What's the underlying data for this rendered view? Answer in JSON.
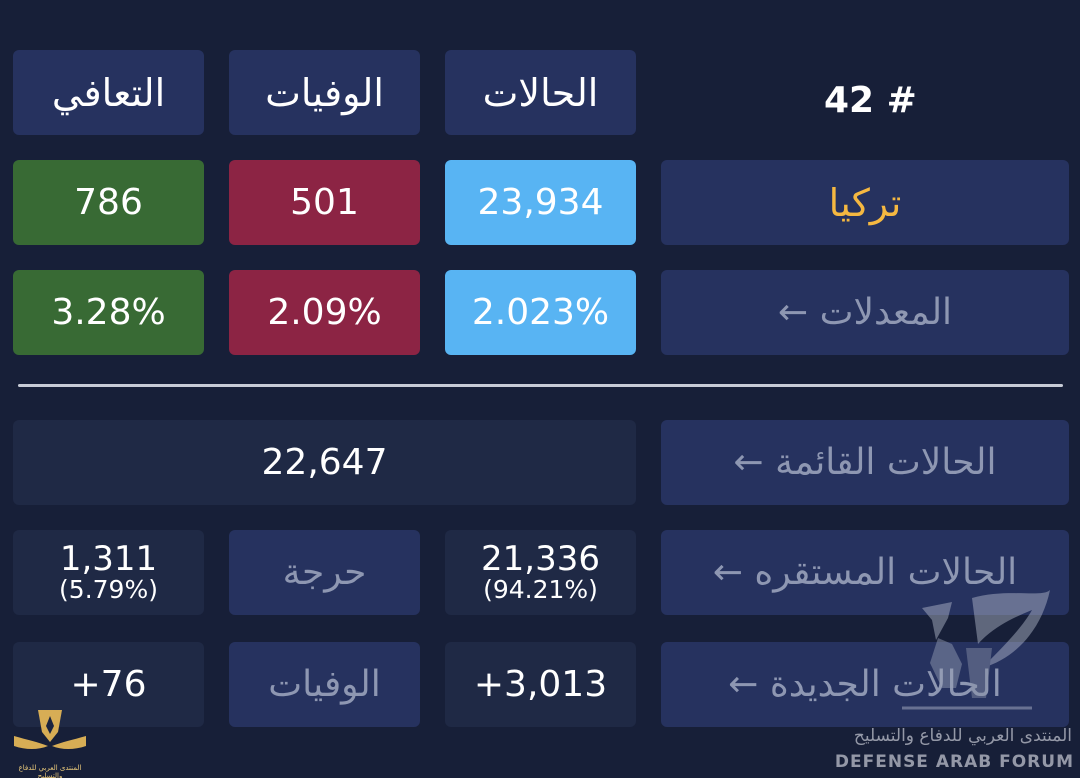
{
  "rank": "42 #",
  "headers": {
    "cases": "الحالات",
    "deaths": "الوفيات",
    "recovered": "التعافي"
  },
  "country": {
    "name": "تركيا",
    "cases": "23,934",
    "deaths": "501",
    "recovered": "786"
  },
  "rates": {
    "label": "المعدلات ←",
    "cases": "2.023%",
    "deaths": "2.09%",
    "recovered": "3.28%"
  },
  "active": {
    "label": "الحالات القائمة ←",
    "value": "22,647"
  },
  "stable": {
    "label": "الحالات المستقره ←",
    "value": "21,336",
    "percent": "(94.21%)",
    "critical_label": "حرجة",
    "critical_value": "1,311",
    "critical_percent": "(5.79%)"
  },
  "new": {
    "label": "الحالات الجديدة ←",
    "cases": "+3,013",
    "deaths_label": "الوفيات",
    "deaths": "+76"
  },
  "watermark": {
    "arabic": "المنتدى العربي للدفاع والتسليح",
    "english": "DEFENSE ARAB FORUM",
    "corner_arabic": "المنتدى العربي للدفاع والتسليح"
  },
  "colors": {
    "background": "#171f38",
    "panel": "#26325f",
    "blue": "#58b4f3",
    "red": "#8c2444",
    "green": "#386a34",
    "gold": "#f5b841"
  }
}
